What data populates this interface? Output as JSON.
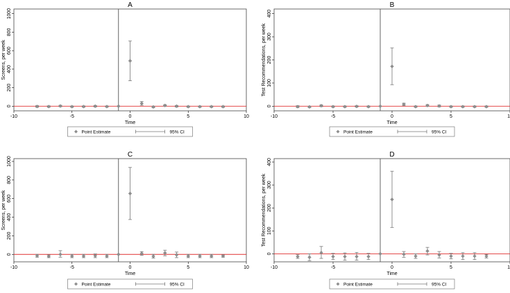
{
  "colors": {
    "point": "#8f8f8f",
    "ci": "#777777",
    "zero_line": "#e03030",
    "event_line": "#555555",
    "frame": "#444444"
  },
  "legend": {
    "point_label": "Point Estimate",
    "ci_label": "95% CI"
  },
  "chart_data": [
    {
      "id": "A",
      "type": "scatter",
      "title": "A",
      "xlabel": "Time",
      "ylabel": "Screens, per week",
      "xlim": [
        -10,
        10
      ],
      "ylim": [
        -50,
        1050
      ],
      "xticks": [
        -10,
        -5,
        0,
        5,
        10
      ],
      "yticks": [
        0,
        200,
        400,
        600,
        800,
        1000
      ],
      "event_time": -1,
      "x": [
        -8,
        -7,
        -6,
        -5,
        -4,
        -3,
        -2,
        -1,
        0,
        1,
        2,
        3,
        4,
        5,
        6,
        7,
        8
      ],
      "estimate": [
        -3,
        -4,
        2,
        -5,
        -4,
        0,
        -4,
        0,
        490,
        30,
        -8,
        8,
        0,
        -5,
        -5,
        -5,
        -5
      ],
      "ci_low": [
        -12,
        -12,
        -6,
        -12,
        -11,
        -8,
        -11,
        0,
        275,
        10,
        -16,
        0,
        -8,
        -12,
        -12,
        -12,
        -12
      ],
      "ci_high": [
        6,
        4,
        10,
        2,
        3,
        8,
        3,
        0,
        705,
        50,
        0,
        16,
        8,
        2,
        2,
        2,
        2
      ]
    },
    {
      "id": "B",
      "type": "scatter",
      "title": "B",
      "xlabel": "Time",
      "ylabel": "Test Recommendations, per week",
      "xlim": [
        -10,
        10
      ],
      "ylim": [
        -20,
        420
      ],
      "xticks": [
        -10,
        -5,
        0,
        5,
        10
      ],
      "yticks": [
        0,
        100,
        200,
        300,
        400
      ],
      "event_time": -1,
      "x": [
        -8,
        -7,
        -6,
        -5,
        -4,
        -3,
        -2,
        -1,
        0,
        1,
        2,
        3,
        4,
        5,
        6,
        7,
        8
      ],
      "estimate": [
        -2,
        -3,
        2,
        -2,
        -2,
        -1,
        -2,
        0,
        172,
        8,
        -2,
        3,
        1,
        -2,
        -2,
        -2,
        -2
      ],
      "ci_low": [
        -6,
        -6,
        -2,
        -5,
        -5,
        -4,
        -5,
        0,
        93,
        3,
        -5,
        0,
        -3,
        -5,
        -5,
        -5,
        -5
      ],
      "ci_high": [
        2,
        0,
        6,
        1,
        1,
        2,
        1,
        0,
        252,
        13,
        1,
        7,
        5,
        1,
        1,
        1,
        1
      ]
    },
    {
      "id": "C",
      "type": "scatter",
      "title": "C",
      "xlabel": "Time",
      "ylabel": "Screens, per week",
      "xlim": [
        -10,
        10
      ],
      "ylim": [
        -80,
        1030
      ],
      "xticks": [
        -10,
        -5,
        0,
        5,
        10
      ],
      "yticks": [
        0,
        200,
        400,
        600,
        800,
        1000
      ],
      "event_time": -1,
      "x": [
        -8,
        -7,
        -6,
        -5,
        -4,
        -3,
        -2,
        -1,
        0,
        1,
        2,
        3,
        4,
        5,
        6,
        7,
        8
      ],
      "estimate": [
        -15,
        -20,
        0,
        -18,
        -18,
        -15,
        -18,
        0,
        655,
        10,
        -20,
        15,
        -5,
        -18,
        -18,
        -18,
        -18
      ],
      "ci_low": [
        -30,
        -35,
        -30,
        -35,
        -35,
        -35,
        -35,
        0,
        375,
        -10,
        -40,
        -15,
        -35,
        -35,
        -35,
        -35,
        -30
      ],
      "ci_high": [
        0,
        -5,
        40,
        0,
        0,
        5,
        0,
        0,
        935,
        30,
        0,
        45,
        25,
        0,
        0,
        0,
        -5
      ]
    },
    {
      "id": "D",
      "type": "scatter",
      "title": "D",
      "xlabel": "Time",
      "ylabel": "Test Recommendations, per week",
      "xlim": [
        -10,
        10
      ],
      "ylim": [
        -35,
        415
      ],
      "xticks": [
        -10,
        -5,
        0,
        5,
        10
      ],
      "yticks": [
        0,
        100,
        200,
        300,
        400
      ],
      "event_time": -1,
      "x": [
        -8,
        -7,
        -6,
        -5,
        -4,
        -3,
        -2,
        -1,
        0,
        1,
        2,
        3,
        4,
        5,
        6,
        7,
        8
      ],
      "estimate": [
        -12,
        -15,
        5,
        -12,
        -12,
        -12,
        -12,
        0,
        237,
        -2,
        -10,
        12,
        -5,
        -10,
        -10,
        -10,
        -10
      ],
      "ci_low": [
        -20,
        -30,
        -20,
        -25,
        -28,
        -28,
        -25,
        0,
        115,
        -15,
        -20,
        -5,
        -18,
        -22,
        -25,
        -25,
        -18
      ],
      "ci_high": [
        -4,
        0,
        32,
        2,
        4,
        6,
        2,
        0,
        360,
        10,
        0,
        28,
        10,
        2,
        5,
        5,
        -3
      ]
    }
  ]
}
